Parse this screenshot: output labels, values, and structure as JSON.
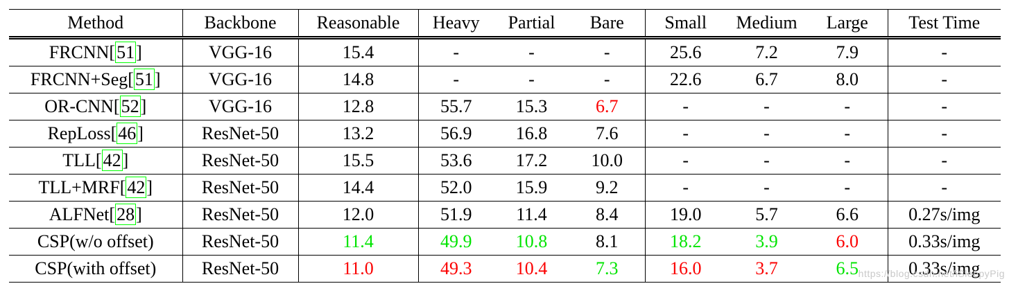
{
  "colors": {
    "highlight_green": "#00e400",
    "highlight_red": "#fb0000",
    "cite_box_green": "#00ff00",
    "watermark_gray": "#c9c9c9"
  },
  "watermark": {
    "text": "https://blog.csdn.net/iSleepyPig"
  },
  "table": {
    "columns": [
      "Method",
      "Backbone",
      "Reasonable",
      "Heavy",
      "Partial",
      "Bare",
      "Small",
      "Medium",
      "Large",
      "Test Time"
    ],
    "rows": [
      {
        "method": {
          "prefix": "FRCNN[",
          "cite": "51",
          "suffix": "]"
        },
        "backbone": "VGG-16",
        "cells": [
          {
            "t": "15.4"
          },
          {
            "t": "-"
          },
          {
            "t": "-"
          },
          {
            "t": "-"
          },
          {
            "t": "25.6"
          },
          {
            "t": "7.2"
          },
          {
            "t": "7.9"
          },
          {
            "t": "-"
          }
        ]
      },
      {
        "method": {
          "prefix": "FRCNN+Seg[",
          "cite": "51",
          "suffix": "]"
        },
        "backbone": "VGG-16",
        "cells": [
          {
            "t": "14.8"
          },
          {
            "t": "-"
          },
          {
            "t": "-"
          },
          {
            "t": "-"
          },
          {
            "t": "22.6"
          },
          {
            "t": "6.7"
          },
          {
            "t": "8.0"
          },
          {
            "t": "-"
          }
        ]
      },
      {
        "method": {
          "prefix": "OR-CNN[",
          "cite": "52",
          "suffix": "]"
        },
        "backbone": "VGG-16",
        "cells": [
          {
            "t": "12.8"
          },
          {
            "t": "55.7"
          },
          {
            "t": "15.3"
          },
          {
            "t": "6.7",
            "c": "red"
          },
          {
            "t": "-"
          },
          {
            "t": "-"
          },
          {
            "t": "-"
          },
          {
            "t": "-"
          }
        ]
      },
      {
        "method": {
          "prefix": "RepLoss[",
          "cite": "46",
          "suffix": "]"
        },
        "backbone": "ResNet-50",
        "cells": [
          {
            "t": "13.2"
          },
          {
            "t": "56.9"
          },
          {
            "t": "16.8"
          },
          {
            "t": "7.6"
          },
          {
            "t": "-"
          },
          {
            "t": "-"
          },
          {
            "t": "-"
          },
          {
            "t": "-"
          }
        ]
      },
      {
        "method": {
          "prefix": "TLL[",
          "cite": "42",
          "suffix": "]"
        },
        "backbone": "ResNet-50",
        "cells": [
          {
            "t": "15.5"
          },
          {
            "t": "53.6"
          },
          {
            "t": "17.2"
          },
          {
            "t": "10.0"
          },
          {
            "t": "-"
          },
          {
            "t": "-"
          },
          {
            "t": "-"
          },
          {
            "t": "-"
          }
        ]
      },
      {
        "method": {
          "prefix": "TLL+MRF[",
          "cite": "42",
          "suffix": "]"
        },
        "backbone": "ResNet-50",
        "cells": [
          {
            "t": "14.4"
          },
          {
            "t": "52.0"
          },
          {
            "t": "15.9"
          },
          {
            "t": "9.2"
          },
          {
            "t": "-"
          },
          {
            "t": "-"
          },
          {
            "t": "-"
          },
          {
            "t": "-"
          }
        ]
      },
      {
        "method": {
          "prefix": "ALFNet[",
          "cite": "28",
          "suffix": "]"
        },
        "backbone": "ResNet-50",
        "cells": [
          {
            "t": "12.0"
          },
          {
            "t": "51.9"
          },
          {
            "t": "11.4"
          },
          {
            "t": "8.4"
          },
          {
            "t": "19.0"
          },
          {
            "t": "5.7"
          },
          {
            "t": "6.6"
          },
          {
            "t": "0.27s/img"
          }
        ]
      },
      {
        "method": {
          "prefix": "CSP(w/o offset)"
        },
        "backbone": "ResNet-50",
        "cells": [
          {
            "t": "11.4",
            "c": "green"
          },
          {
            "t": "49.9",
            "c": "green"
          },
          {
            "t": "10.8",
            "c": "green"
          },
          {
            "t": "8.1"
          },
          {
            "t": "18.2",
            "c": "green"
          },
          {
            "t": "3.9",
            "c": "green"
          },
          {
            "t": "6.0",
            "c": "red"
          },
          {
            "t": "0.33s/img"
          }
        ]
      },
      {
        "method": {
          "prefix": "CSP(with offset)"
        },
        "backbone": "ResNet-50",
        "cells": [
          {
            "t": "11.0",
            "c": "red"
          },
          {
            "t": "49.3",
            "c": "red"
          },
          {
            "t": "10.4",
            "c": "red"
          },
          {
            "t": "7.3",
            "c": "green"
          },
          {
            "t": "16.0",
            "c": "red"
          },
          {
            "t": "3.7",
            "c": "red"
          },
          {
            "t": "6.5",
            "c": "green"
          },
          {
            "t": "0.33s/img"
          }
        ]
      }
    ]
  }
}
